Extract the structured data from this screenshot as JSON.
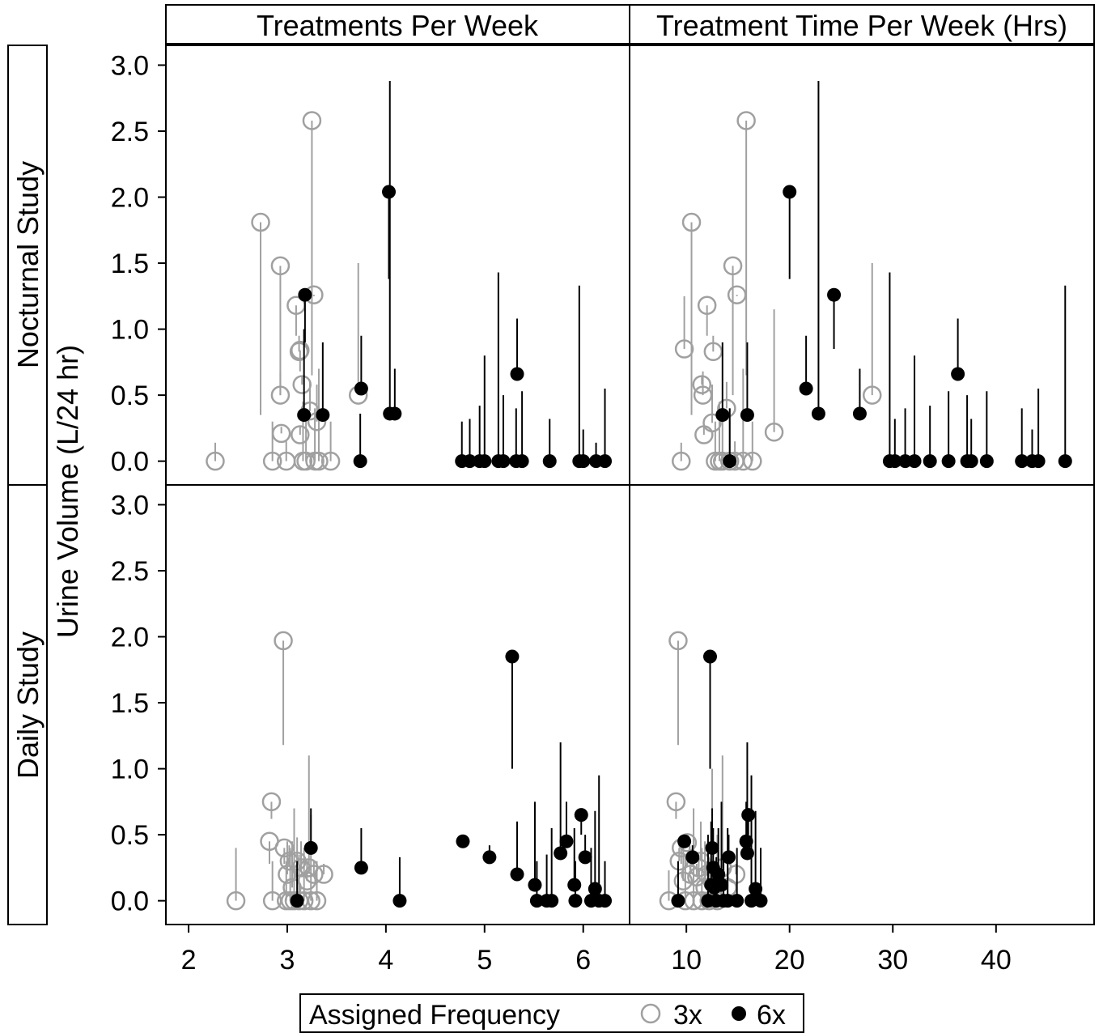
{
  "chart_data": {
    "type": "scatter",
    "subtype": "paneled scatter with vertical range segments",
    "ylabel": "Urine Volume (L/24 hr)",
    "column_strips": [
      "Treatments Per Week",
      "Treatment Time Per Week (Hrs)"
    ],
    "row_strips": [
      "Nocturnal Study",
      "Daily Study"
    ],
    "ylim": [
      -0.18,
      3.15
    ],
    "yticks": [
      "0.0",
      "0.5",
      "1.0",
      "1.5",
      "2.0",
      "2.5",
      "3.0"
    ],
    "columns": [
      {
        "xlim": [
          1.77,
          6.47
        ],
        "xticks": [
          "2",
          "3",
          "4",
          "5",
          "6"
        ]
      },
      {
        "xlim": [
          4.5,
          49.5
        ],
        "xticks": [
          "10",
          "20",
          "30",
          "40"
        ]
      }
    ],
    "legend": {
      "title": "Assigned Frequency",
      "entries": [
        "3x",
        "6x"
      ],
      "position": "bottom-center"
    },
    "colors": {
      "3x": "#a0a0a0",
      "6x": "#000000"
    },
    "grid": false,
    "panels": [
      {
        "row": "Nocturnal Study",
        "column": "Treatments Per Week",
        "series": [
          {
            "group": "3x",
            "points": [
              [
                2.27,
                0,
                0.14
              ],
              [
                2.73,
                1.81,
                0.35
              ],
              [
                2.85,
                0,
                0.3
              ],
              [
                2.93,
                1.48,
                0.5
              ],
              [
                2.93,
                0.5,
                0.68
              ],
              [
                2.94,
                0.21,
                0.26
              ],
              [
                2.99,
                0,
                0.15
              ],
              [
                3.09,
                1.18,
                0.95
              ],
              [
                3.12,
                0.83,
                0.95
              ],
              [
                3.13,
                0.84,
                0.68
              ],
              [
                3.13,
                0.2,
                0.26
              ],
              [
                3.15,
                0.58,
                0.65
              ],
              [
                3.16,
                0,
                0.45
              ],
              [
                3.19,
                0,
                0.4
              ],
              [
                3.23,
                0.38,
                0.6
              ],
              [
                3.25,
                2.58,
                0.65
              ],
              [
                3.27,
                1.26,
                1.25
              ],
              [
                3.28,
                0,
                0.4
              ],
              [
                3.3,
                0.3,
                0.58
              ],
              [
                3.32,
                0,
                0.7
              ],
              [
                3.44,
                0,
                0.3
              ],
              [
                3.72,
                0.5,
                1.5
              ]
            ]
          },
          {
            "group": "6x",
            "points": [
              [
                3.17,
                0.35,
                1.0
              ],
              [
                3.18,
                1.26,
                0.9
              ],
              [
                3.36,
                0.35,
                0.9
              ],
              [
                3.74,
                0,
                0.36
              ],
              [
                3.75,
                0.55,
                0.95
              ],
              [
                4.03,
                2.04,
                1.38
              ],
              [
                4.04,
                0.36,
                2.88
              ],
              [
                4.09,
                0.36,
                0.7
              ],
              [
                4.77,
                0,
                0.3
              ],
              [
                4.85,
                0,
                0.32
              ],
              [
                4.95,
                0,
                0.42
              ],
              [
                5.0,
                0,
                0.8
              ],
              [
                5.14,
                0,
                1.43
              ],
              [
                5.19,
                0,
                0.5
              ],
              [
                5.32,
                0,
                0.4
              ],
              [
                5.33,
                0.66,
                1.08
              ],
              [
                5.38,
                0,
                0.53
              ],
              [
                5.66,
                0,
                0.32
              ],
              [
                5.96,
                0,
                1.33
              ],
              [
                6.0,
                0,
                0.24
              ],
              [
                6.13,
                0,
                0.14
              ],
              [
                6.22,
                0,
                0.55
              ]
            ]
          }
        ]
      },
      {
        "row": "Nocturnal Study",
        "column": "Treatment Time Per Week (Hrs)",
        "series": [
          {
            "group": "3x",
            "points": [
              [
                9.5,
                0,
                0.14
              ],
              [
                9.8,
                0.85,
                1.25
              ],
              [
                10.5,
                1.81,
                0.35
              ],
              [
                11.5,
                0.58,
                0.65
              ],
              [
                11.6,
                0.5,
                0.68
              ],
              [
                11.7,
                0.2,
                0.26
              ],
              [
                12.0,
                1.18,
                0.95
              ],
              [
                12.5,
                0.29,
                0.58
              ],
              [
                12.6,
                0.83,
                0.95
              ],
              [
                12.8,
                0,
                0.3
              ],
              [
                13.2,
                0,
                0.45
              ],
              [
                13.5,
                0,
                0.4
              ],
              [
                13.9,
                0.4,
                0.6
              ],
              [
                14.2,
                0,
                0.4
              ],
              [
                14.5,
                1.48,
                0.5
              ],
              [
                14.7,
                0,
                0.15
              ],
              [
                14.9,
                1.26,
                1.25
              ],
              [
                15.5,
                0,
                0.7
              ],
              [
                15.8,
                2.58,
                0.65
              ],
              [
                16.4,
                0,
                0.3
              ],
              [
                18.5,
                0.22,
                1.15
              ],
              [
                28.0,
                0.5,
                1.5
              ]
            ]
          },
          {
            "group": "6x",
            "points": [
              [
                13.5,
                0.35,
                0.9
              ],
              [
                14.2,
                0,
                0.4
              ],
              [
                15.9,
                0.35,
                0.9
              ],
              [
                20.0,
                2.04,
                1.38
              ],
              [
                21.6,
                0.55,
                0.95
              ],
              [
                22.8,
                0.36,
                2.88
              ],
              [
                24.3,
                1.26,
                0.85
              ],
              [
                26.8,
                0.36,
                0.7
              ],
              [
                29.7,
                0,
                1.43
              ],
              [
                30.2,
                0,
                0.32
              ],
              [
                31.2,
                0,
                0.4
              ],
              [
                32.1,
                0,
                0.8
              ],
              [
                33.6,
                0,
                0.42
              ],
              [
                35.4,
                0,
                0.53
              ],
              [
                36.3,
                0.66,
                1.08
              ],
              [
                37.2,
                0,
                0.5
              ],
              [
                37.6,
                0,
                0.32
              ],
              [
                39.1,
                0,
                0.53
              ],
              [
                42.5,
                0,
                0.4
              ],
              [
                43.5,
                0,
                0.24
              ],
              [
                44.1,
                0,
                0.55
              ],
              [
                46.7,
                0,
                1.33
              ]
            ]
          }
        ]
      },
      {
        "row": "Daily Study",
        "column": "Treatments Per Week",
        "series": [
          {
            "group": "3x",
            "points": [
              [
                2.48,
                0,
                0.4
              ],
              [
                2.82,
                0.45,
                0.28
              ],
              [
                2.84,
                0.75,
                0.62
              ],
              [
                2.85,
                0,
                0.3
              ],
              [
                2.96,
                1.97,
                1.18
              ],
              [
                2.97,
                0.4,
                0.28
              ],
              [
                2.99,
                0,
                0.3
              ],
              [
                3.0,
                0.2,
                0.45
              ],
              [
                3.02,
                0.3,
                0.42
              ],
              [
                3.03,
                0,
                0.4
              ],
              [
                3.05,
                0.1,
                0.45
              ],
              [
                3.07,
                0,
                0.7
              ],
              [
                3.1,
                0.3,
                0.48
              ],
              [
                3.12,
                0,
                0.35
              ],
              [
                3.14,
                0.25,
                0.45
              ],
              [
                3.17,
                0,
                0.4
              ],
              [
                3.2,
                0.15,
                0.3
              ],
              [
                3.22,
                0.25,
                1.1
              ],
              [
                3.24,
                0,
                0.65
              ],
              [
                3.27,
                0.2,
                0.3
              ],
              [
                3.3,
                0,
                0.3
              ],
              [
                3.37,
                0.2,
                0.28
              ]
            ]
          },
          {
            "group": "6x",
            "points": [
              [
                3.1,
                0,
                0.3
              ],
              [
                3.24,
                0.4,
                0.7
              ],
              [
                3.75,
                0.25,
                0.55
              ],
              [
                4.14,
                0,
                0.33
              ],
              [
                4.78,
                0.45,
                0.4
              ],
              [
                5.05,
                0.33,
                0.42
              ],
              [
                5.28,
                1.85,
                1.0
              ],
              [
                5.33,
                0.2,
                0.6
              ],
              [
                5.51,
                0.12,
                0.75
              ],
              [
                5.53,
                0,
                0.3
              ],
              [
                5.63,
                0,
                0.35
              ],
              [
                5.68,
                0,
                0.55
              ],
              [
                5.77,
                0.36,
                1.2
              ],
              [
                5.83,
                0.45,
                0.75
              ],
              [
                5.91,
                0.12,
                0.55
              ],
              [
                5.92,
                0,
                0.3
              ],
              [
                5.98,
                0.65,
                0.5
              ],
              [
                6.02,
                0.33,
                0.5
              ],
              [
                6.08,
                0,
                0.4
              ],
              [
                6.12,
                0.09,
                0.68
              ],
              [
                6.16,
                0,
                0.95
              ],
              [
                6.22,
                0,
                0.3
              ]
            ]
          }
        ]
      },
      {
        "row": "Daily Study",
        "column": "Treatment Time Per Week (Hrs)",
        "series": [
          {
            "group": "3x",
            "points": [
              [
                8.3,
                0,
                0.23
              ],
              [
                9.0,
                0.75,
                0.62
              ],
              [
                9.2,
                1.97,
                1.18
              ],
              [
                9.3,
                0.3,
                0.4
              ],
              [
                9.5,
                0.4,
                0.28
              ],
              [
                9.7,
                0.15,
                0.45
              ],
              [
                9.9,
                0,
                0.35
              ],
              [
                10.1,
                0.44,
                0.5
              ],
              [
                10.4,
                0.2,
                0.3
              ],
              [
                10.7,
                0,
                0.7
              ],
              [
                11.0,
                0.18,
                0.28
              ],
              [
                11.2,
                0.25,
                0.35
              ],
              [
                11.4,
                0.3,
                0.6
              ],
              [
                11.5,
                0,
                0.4
              ],
              [
                11.8,
                0.1,
                0.45
              ],
              [
                12.0,
                0.2,
                0.3
              ],
              [
                12.2,
                0,
                0.3
              ],
              [
                12.5,
                0.15,
                1.0
              ],
              [
                13.0,
                0,
                0.5
              ],
              [
                13.5,
                0.25,
                1.1
              ],
              [
                14.0,
                0.1,
                0.3
              ],
              [
                14.8,
                0.2,
                0.28
              ]
            ]
          },
          {
            "group": "6x",
            "points": [
              [
                9.2,
                0,
                0.3
              ],
              [
                9.8,
                0.45,
                0.4
              ],
              [
                10.6,
                0.33,
                0.42
              ],
              [
                12.1,
                0,
                0.5
              ],
              [
                12.3,
                1.85,
                1.0
              ],
              [
                12.4,
                0.12,
                0.6
              ],
              [
                12.5,
                0.4,
                0.7
              ],
              [
                12.6,
                0.25,
                0.55
              ],
              [
                12.7,
                0.1,
                0.3
              ],
              [
                12.9,
                0,
                0.33
              ],
              [
                13.1,
                0.2,
                0.55
              ],
              [
                13.4,
                0.12,
                0.75
              ],
              [
                13.6,
                0,
                0.35
              ],
              [
                14.0,
                0,
                0.55
              ],
              [
                14.1,
                0.33,
                0.5
              ],
              [
                14.9,
                0,
                0.4
              ],
              [
                15.8,
                0.45,
                0.75
              ],
              [
                15.9,
                0.36,
                1.2
              ],
              [
                16.0,
                0.65,
                0.5
              ],
              [
                16.3,
                0,
                0.95
              ],
              [
                16.7,
                0.09,
                0.68
              ],
              [
                17.2,
                0,
                0.4
              ]
            ]
          }
        ]
      }
    ]
  }
}
